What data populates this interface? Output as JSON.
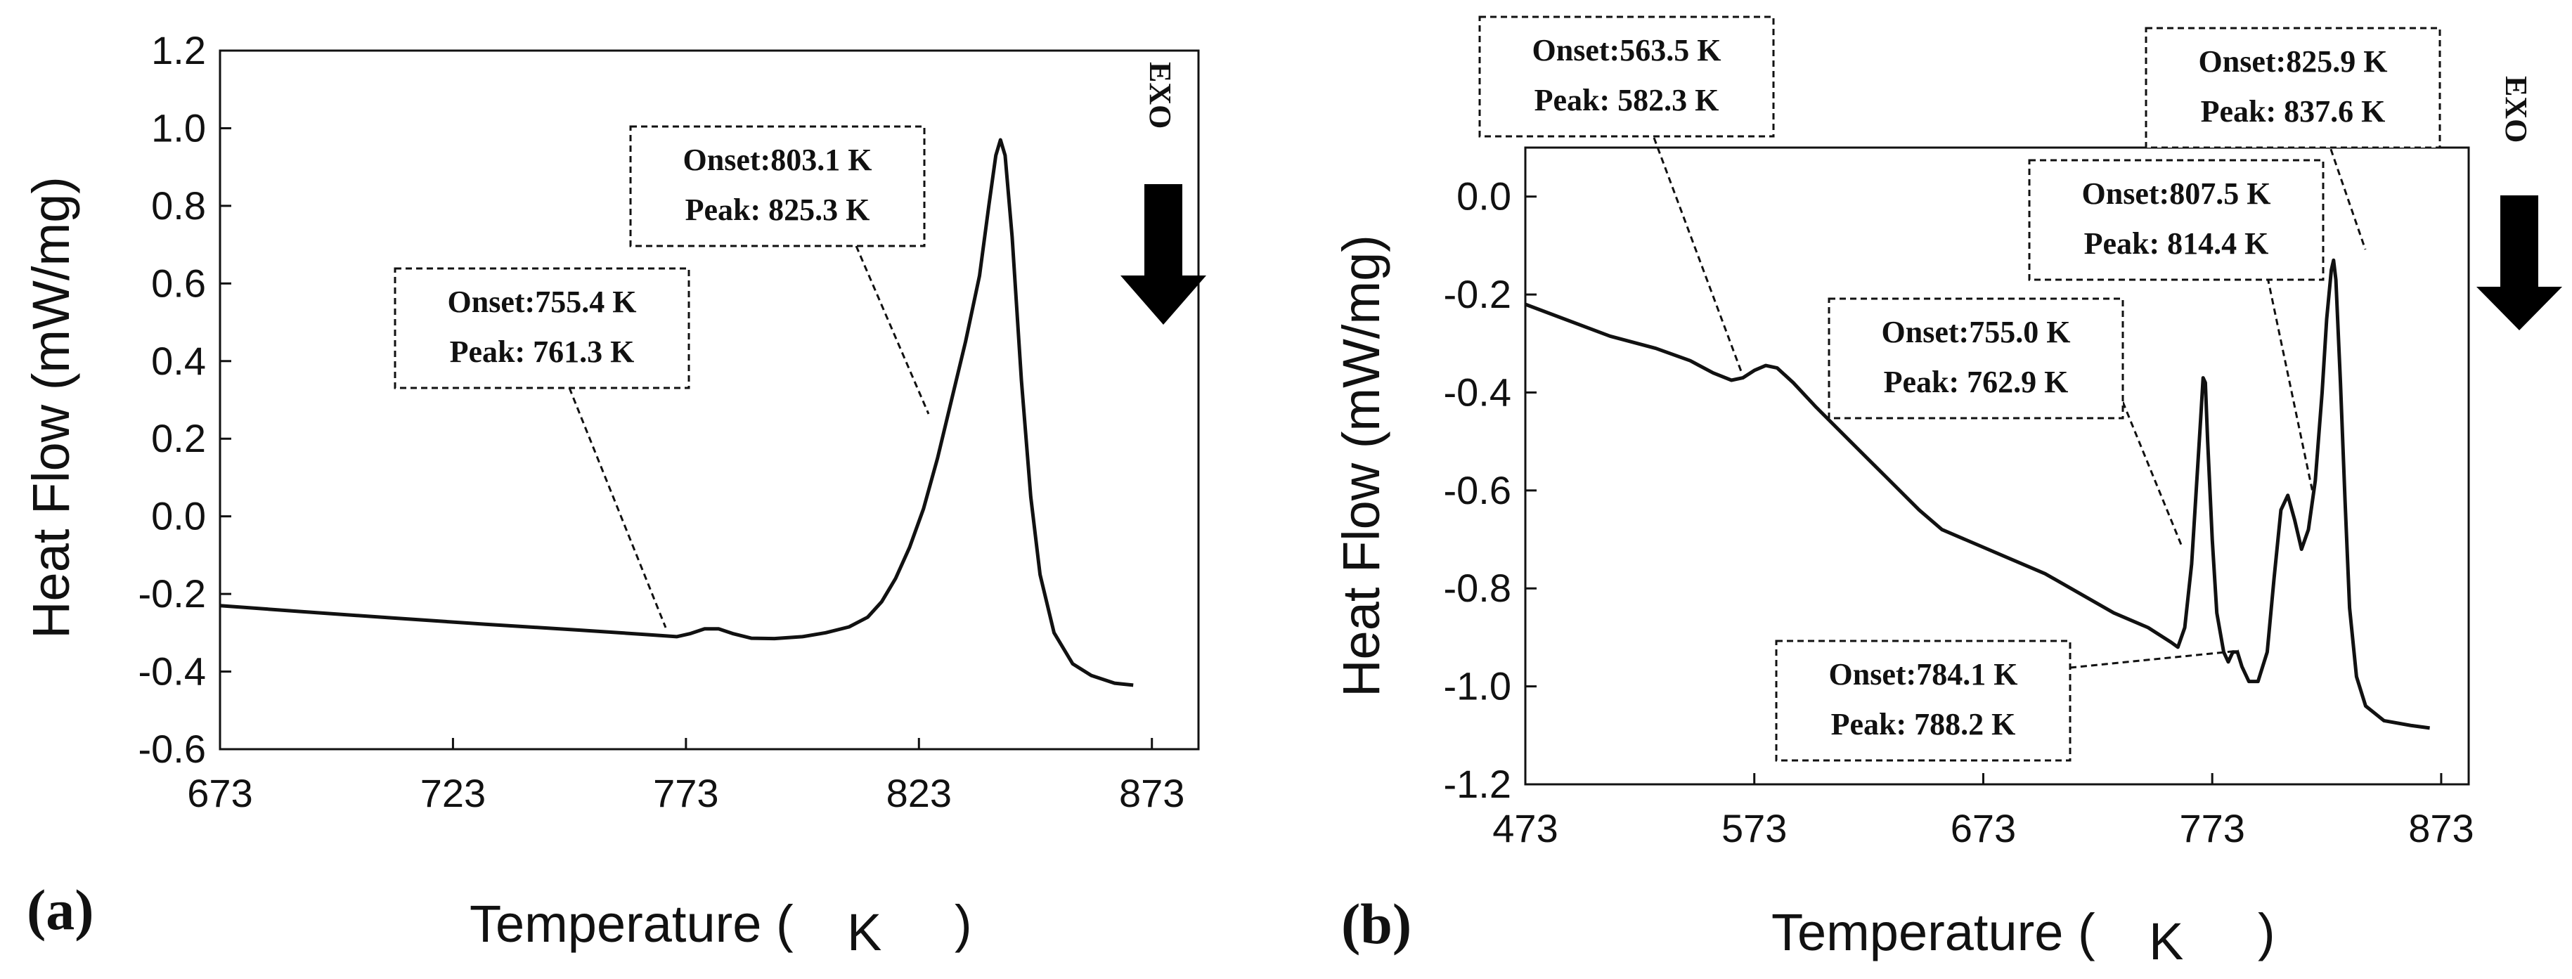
{
  "chart_data": [
    {
      "type": "line",
      "panel_label": "(a)",
      "xlabel": "Temperature (",
      "xlabel_unit": "K",
      "xlabel_close": ")",
      "ylabel": "Heat Flow (mW/mg)",
      "xlim": [
        673,
        883
      ],
      "ylim": [
        -0.6,
        1.2
      ],
      "xticks": [
        673,
        723,
        773,
        823,
        873
      ],
      "yticks": [
        -0.6,
        -0.4,
        -0.2,
        0.0,
        0.2,
        0.4,
        0.6,
        0.8,
        1.0,
        1.2
      ],
      "ytick_labels": [
        "-0.6",
        "-0.4",
        "-0.2",
        "0.0",
        "0.2",
        "0.4",
        "0.6",
        "0.8",
        "1.0",
        "1.2"
      ],
      "exo_label": "EXO",
      "series": [
        {
          "name": "DSC curve",
          "points": [
            [
              673,
              -0.23
            ],
            [
              690,
              -0.245
            ],
            [
              710,
              -0.262
            ],
            [
              730,
              -0.278
            ],
            [
              750,
              -0.293
            ],
            [
              765,
              -0.305
            ],
            [
              771,
              -0.31
            ],
            [
              774,
              -0.302
            ],
            [
              777,
              -0.29
            ],
            [
              780,
              -0.29
            ],
            [
              783,
              -0.302
            ],
            [
              787,
              -0.314
            ],
            [
              792,
              -0.315
            ],
            [
              798,
              -0.31
            ],
            [
              803,
              -0.3
            ],
            [
              808,
              -0.285
            ],
            [
              812,
              -0.26
            ],
            [
              815,
              -0.22
            ],
            [
              818,
              -0.16
            ],
            [
              821,
              -0.08
            ],
            [
              824,
              0.02
            ],
            [
              827,
              0.15
            ],
            [
              830,
              0.3
            ],
            [
              833,
              0.45
            ],
            [
              836,
              0.62
            ],
            [
              838,
              0.8
            ],
            [
              839.5,
              0.93
            ],
            [
              840.5,
              0.97
            ],
            [
              841.5,
              0.93
            ],
            [
              843,
              0.72
            ],
            [
              845,
              0.35
            ],
            [
              847,
              0.05
            ],
            [
              849,
              -0.15
            ],
            [
              852,
              -0.3
            ],
            [
              856,
              -0.38
            ],
            [
              860,
              -0.41
            ],
            [
              865,
              -0.43
            ],
            [
              869,
              -0.435
            ]
          ]
        }
      ],
      "annotations": [
        {
          "onset": "Onset:755.4 K",
          "peak": "Peak: 761.3 K",
          "target": [
            769,
            -0.31
          ]
        },
        {
          "onset": "Onset:803.1 K",
          "peak": "Peak: 825.3 K",
          "target": [
            830,
            0.26
          ]
        }
      ]
    },
    {
      "type": "line",
      "panel_label": "(b)",
      "xlabel": "Temperature (",
      "xlabel_unit": "K",
      "xlabel_close": ")",
      "ylabel": "Heat Flow (mW/mg)",
      "xlim": [
        473,
        885
      ],
      "ylim": [
        -1.2,
        0.1
      ],
      "xticks": [
        473,
        573,
        673,
        773,
        873
      ],
      "yticks": [
        -1.2,
        -1.0,
        -0.8,
        -0.6,
        -0.4,
        -0.2,
        0.0
      ],
      "ytick_labels": [
        "-1.2",
        "-1.0",
        "-0.8",
        "-0.6",
        "-0.4",
        "-0.2",
        "0.0"
      ],
      "exo_label": "EXO",
      "series": [
        {
          "name": "DSC curve",
          "points": [
            [
              473,
              -0.22
            ],
            [
              490,
              -0.25
            ],
            [
              510,
              -0.285
            ],
            [
              530,
              -0.31
            ],
            [
              545,
              -0.335
            ],
            [
              555,
              -0.36
            ],
            [
              563,
              -0.375
            ],
            [
              568,
              -0.37
            ],
            [
              573,
              -0.355
            ],
            [
              578,
              -0.345
            ],
            [
              583,
              -0.35
            ],
            [
              590,
              -0.38
            ],
            [
              600,
              -0.43
            ],
            [
              615,
              -0.5
            ],
            [
              630,
              -0.57
            ],
            [
              645,
              -0.64
            ],
            [
              655,
              -0.68
            ],
            [
              670,
              -0.71
            ],
            [
              685,
              -0.74
            ],
            [
              700,
              -0.77
            ],
            [
              715,
              -0.81
            ],
            [
              730,
              -0.85
            ],
            [
              745,
              -0.88
            ],
            [
              755,
              -0.91
            ],
            [
              758,
              -0.92
            ],
            [
              761,
              -0.88
            ],
            [
              764,
              -0.75
            ],
            [
              766,
              -0.6
            ],
            [
              768,
              -0.45
            ],
            [
              769,
              -0.37
            ],
            [
              770,
              -0.38
            ],
            [
              771,
              -0.5
            ],
            [
              773,
              -0.7
            ],
            [
              775,
              -0.85
            ],
            [
              778,
              -0.93
            ],
            [
              780,
              -0.95
            ],
            [
              782,
              -0.93
            ],
            [
              784,
              -0.93
            ],
            [
              786,
              -0.96
            ],
            [
              789,
              -0.99
            ],
            [
              793,
              -0.99
            ],
            [
              797,
              -0.93
            ],
            [
              800,
              -0.78
            ],
            [
              803,
              -0.64
            ],
            [
              806,
              -0.61
            ],
            [
              809,
              -0.66
            ],
            [
              812,
              -0.72
            ],
            [
              815,
              -0.68
            ],
            [
              818,
              -0.58
            ],
            [
              821,
              -0.4
            ],
            [
              823,
              -0.25
            ],
            [
              825,
              -0.15
            ],
            [
              826,
              -0.13
            ],
            [
              827,
              -0.17
            ],
            [
              829,
              -0.38
            ],
            [
              831,
              -0.62
            ],
            [
              833,
              -0.84
            ],
            [
              836,
              -0.98
            ],
            [
              840,
              -1.04
            ],
            [
              848,
              -1.07
            ],
            [
              860,
              -1.08
            ],
            [
              868,
              -1.085
            ]
          ]
        }
      ],
      "annotations": [
        {
          "onset": "Onset:563.5 K",
          "peak": "Peak: 582.3 K",
          "target": [
            561,
            -0.37
          ]
        },
        {
          "onset": "Onset:755.0 K",
          "peak": "Peak: 762.9 K",
          "target": [
            764,
            -0.72
          ]
        },
        {
          "onset": "Onset:784.1 K",
          "peak": "Peak: 788.2 K",
          "target": [
            782,
            -0.93
          ]
        },
        {
          "onset": "Onset:807.5 K",
          "peak": "Peak: 814.4 K",
          "target": [
            805,
            -0.59
          ]
        },
        {
          "onset": "Onset:825.9 K",
          "peak": "Peak: 837.6 K",
          "target": [
            825,
            -0.12
          ]
        }
      ]
    }
  ]
}
